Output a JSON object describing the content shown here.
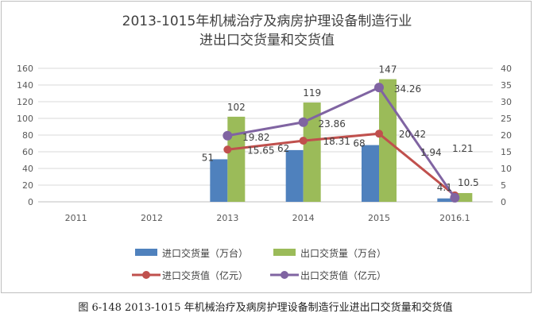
{
  "chart_data": {
    "type": "bar",
    "title_lines": [
      "2013-1015年机械治疗及病房护理设备制造行业",
      "进出口交货量和交货值"
    ],
    "categories": [
      "2011",
      "2012",
      "2013",
      "2014",
      "2015",
      "2016.1"
    ],
    "y_left": {
      "min": 0,
      "max": 160,
      "ticks": [
        "0",
        "20",
        "40",
        "60",
        "80",
        "100",
        "120",
        "140",
        "160"
      ]
    },
    "y_right": {
      "min": 0,
      "max": 40,
      "ticks": [
        "0",
        "5",
        "10",
        "15",
        "20",
        "25",
        "30",
        "35",
        "40"
      ]
    },
    "gridlines": true,
    "series": [
      {
        "name": "进口交货量（万台）",
        "kind": "bar",
        "axis": "left",
        "color": "#4f81bd",
        "values": [
          null,
          null,
          51,
          62,
          68,
          4.1
        ],
        "labels": [
          "",
          "",
          "51",
          "62",
          "68",
          "4.1"
        ]
      },
      {
        "name": "出口交货量（万台）",
        "kind": "bar",
        "axis": "left",
        "color": "#9bbb59",
        "values": [
          null,
          null,
          102,
          119,
          147,
          10.5
        ],
        "labels": [
          "",
          "",
          "102",
          "119",
          "147",
          "10.5"
        ]
      },
      {
        "name": "进口交货值（亿元）",
        "kind": "line",
        "axis": "right",
        "color": "#c0504d",
        "values": [
          null,
          null,
          15.65,
          18.31,
          20.42,
          1.94
        ],
        "labels": [
          "",
          "",
          "15.65",
          "18.31",
          "20.42",
          "1.94"
        ]
      },
      {
        "name": "出口交货值（亿元）",
        "kind": "line",
        "axis": "right",
        "color": "#8064a2",
        "values": [
          null,
          null,
          19.82,
          23.86,
          34.26,
          1.21
        ],
        "labels": [
          "",
          "",
          "19.82",
          "23.86",
          "34.26",
          "1.21"
        ]
      }
    ]
  },
  "caption": {
    "figure_number": "图 6-148",
    "text": "2013-1015 年机械治疗及病房护理设备制造行业进出口交货量和交货值"
  }
}
